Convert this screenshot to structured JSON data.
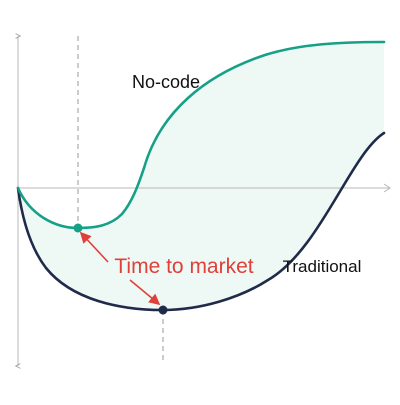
{
  "labels": {
    "nocode": "No-code",
    "traditional": "Traditional",
    "time_to_market": "Time to market"
  },
  "colors": {
    "nocode": "#16a085",
    "traditional": "#1f2b48",
    "fill": "#eef9f6",
    "annotation": "#e0403a",
    "axis": "#b8b8b8",
    "guide": "#9a9a9a"
  }
}
